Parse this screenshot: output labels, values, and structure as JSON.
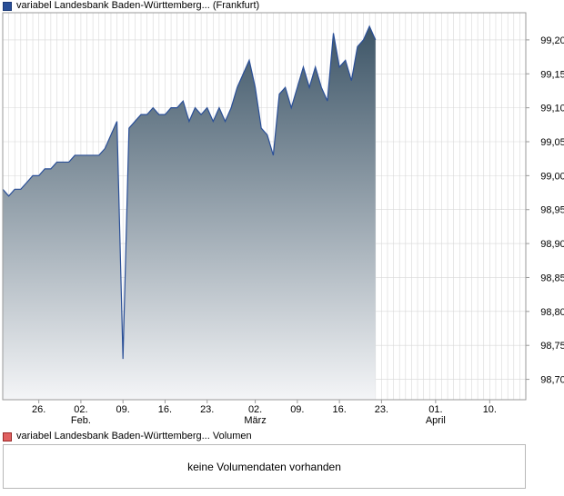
{
  "legend": {
    "price_label": "variabel Landesbank Baden-Württemberg... (Frankfurt)",
    "volume_label": "variabel Landesbank Baden-Württemberg... Volumen"
  },
  "volume_panel": {
    "message": "keine Volumendaten vorhanden"
  },
  "colors": {
    "line": "#2a4f97",
    "area_top": "#3d5567",
    "area_bottom": "#f4f5f7",
    "grid": "#d8d8d8",
    "axis": "#9a9a9a"
  },
  "chart_data": {
    "type": "area",
    "ylim": [
      98.67,
      99.24
    ],
    "ytick_values": [
      98.7,
      98.75,
      98.8,
      98.85,
      98.9,
      98.95,
      99.0,
      99.05,
      99.1,
      99.15,
      99.2
    ],
    "ytick_labels": [
      "98,70",
      "98,75",
      "98,80",
      "98,85",
      "98,90",
      "98,95",
      "99,00",
      "99,05",
      "99,10",
      "99,15",
      "99,20"
    ],
    "xlim": [
      "2024-01-20",
      "2024-04-16"
    ],
    "x_ticks": [
      {
        "date": "2024-01-26",
        "label": "26.",
        "sub": ""
      },
      {
        "date": "2024-02-02",
        "label": "02.",
        "sub": "Feb."
      },
      {
        "date": "2024-02-09",
        "label": "09.",
        "sub": ""
      },
      {
        "date": "2024-02-16",
        "label": "16.",
        "sub": ""
      },
      {
        "date": "2024-02-23",
        "label": "23.",
        "sub": ""
      },
      {
        "date": "2024-03-02",
        "label": "02.",
        "sub": "März"
      },
      {
        "date": "2024-03-09",
        "label": "09.",
        "sub": ""
      },
      {
        "date": "2024-03-16",
        "label": "16.",
        "sub": ""
      },
      {
        "date": "2024-03-23",
        "label": "23.",
        "sub": ""
      },
      {
        "date": "2024-04-01",
        "label": "01.",
        "sub": "April"
      },
      {
        "date": "2024-04-10",
        "label": "10.",
        "sub": ""
      }
    ],
    "grid": true,
    "series": [
      {
        "name": "variabel Landesbank Baden-Württemberg... (Frankfurt)",
        "points": [
          [
            "2024-01-20",
            98.98
          ],
          [
            "2024-01-21",
            98.97
          ],
          [
            "2024-01-22",
            98.98
          ],
          [
            "2024-01-23",
            98.98
          ],
          [
            "2024-01-24",
            98.99
          ],
          [
            "2024-01-25",
            99.0
          ],
          [
            "2024-01-26",
            99.0
          ],
          [
            "2024-01-27",
            99.01
          ],
          [
            "2024-01-28",
            99.01
          ],
          [
            "2024-01-29",
            99.02
          ],
          [
            "2024-01-30",
            99.02
          ],
          [
            "2024-01-31",
            99.02
          ],
          [
            "2024-02-01",
            99.03
          ],
          [
            "2024-02-02",
            99.03
          ],
          [
            "2024-02-03",
            99.03
          ],
          [
            "2024-02-04",
            99.03
          ],
          [
            "2024-02-05",
            99.03
          ],
          [
            "2024-02-06",
            99.04
          ],
          [
            "2024-02-07",
            99.06
          ],
          [
            "2024-02-08",
            99.08
          ],
          [
            "2024-02-09",
            98.73
          ],
          [
            "2024-02-10",
            99.07
          ],
          [
            "2024-02-11",
            99.08
          ],
          [
            "2024-02-12",
            99.09
          ],
          [
            "2024-02-13",
            99.09
          ],
          [
            "2024-02-14",
            99.1
          ],
          [
            "2024-02-15",
            99.09
          ],
          [
            "2024-02-16",
            99.09
          ],
          [
            "2024-02-17",
            99.1
          ],
          [
            "2024-02-18",
            99.1
          ],
          [
            "2024-02-19",
            99.11
          ],
          [
            "2024-02-20",
            99.08
          ],
          [
            "2024-02-21",
            99.1
          ],
          [
            "2024-02-22",
            99.09
          ],
          [
            "2024-02-23",
            99.1
          ],
          [
            "2024-02-24",
            99.08
          ],
          [
            "2024-02-25",
            99.1
          ],
          [
            "2024-02-26",
            99.08
          ],
          [
            "2024-02-27",
            99.1
          ],
          [
            "2024-02-28",
            99.13
          ],
          [
            "2024-02-29",
            99.15
          ],
          [
            "2024-03-01",
            99.17
          ],
          [
            "2024-03-02",
            99.13
          ],
          [
            "2024-03-03",
            99.07
          ],
          [
            "2024-03-04",
            99.06
          ],
          [
            "2024-03-05",
            99.03
          ],
          [
            "2024-03-06",
            99.12
          ],
          [
            "2024-03-07",
            99.13
          ],
          [
            "2024-03-08",
            99.1
          ],
          [
            "2024-03-09",
            99.13
          ],
          [
            "2024-03-10",
            99.16
          ],
          [
            "2024-03-11",
            99.13
          ],
          [
            "2024-03-12",
            99.16
          ],
          [
            "2024-03-13",
            99.13
          ],
          [
            "2024-03-14",
            99.11
          ],
          [
            "2024-03-15",
            99.21
          ],
          [
            "2024-03-16",
            99.16
          ],
          [
            "2024-03-17",
            99.17
          ],
          [
            "2024-03-18",
            99.14
          ],
          [
            "2024-03-19",
            99.19
          ],
          [
            "2024-03-20",
            99.2
          ],
          [
            "2024-03-21",
            99.22
          ],
          [
            "2024-03-22",
            99.2
          ]
        ]
      }
    ]
  }
}
